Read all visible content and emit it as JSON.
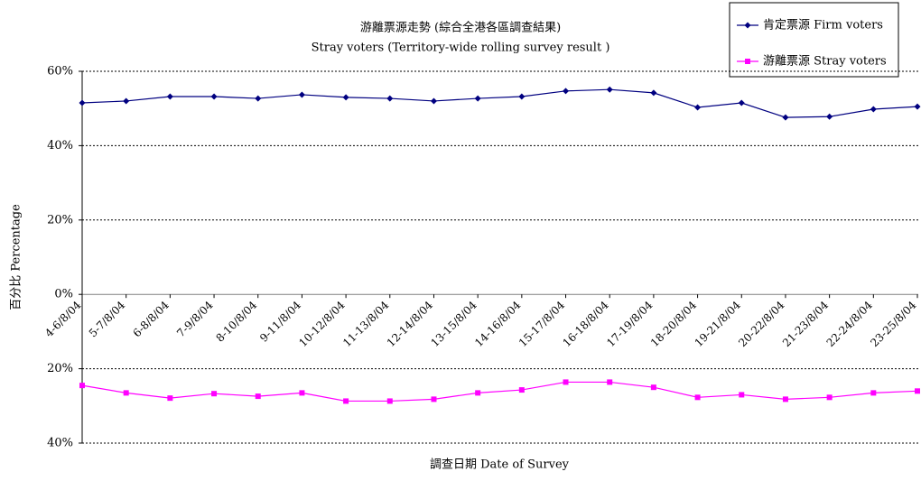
{
  "chart_data": {
    "type": "line",
    "title": "游離票源走勢 (綜合全港各區調查結果)",
    "subtitle": "Stray voters (Territory-wide rolling survey result )",
    "xlabel": "調查日期 Date of Survey",
    "ylabel": "百分比 Percentage",
    "categories": [
      "4-6/8/04",
      "5-7/8/04",
      "6-8/8/04",
      "7-9/8/04",
      "8-10/8/04",
      "9-11/8/04",
      "10-12/8/04",
      "11-13/8/04",
      "12-14/8/04",
      "13-15/8/04",
      "14-16/8/04",
      "15-17/8/04",
      "16-18/8/04",
      "17-19/8/04",
      "18-20/8/04",
      "19-21/8/04",
      "20-22/8/04",
      "21-23/8/04",
      "22-24/8/04",
      "23-25/8/04"
    ],
    "series": [
      {
        "name": "肯定票源 Firm voters",
        "color": "#000080",
        "marker": "diamond",
        "values": [
          51.5,
          52.0,
          53.2,
          53.2,
          52.7,
          53.7,
          53.0,
          52.7,
          52.0,
          52.7,
          53.2,
          54.7,
          55.1,
          54.2,
          50.3,
          51.5,
          47.6,
          47.8,
          49.8,
          50.5
        ]
      },
      {
        "name": "游離票源 Stray voters",
        "color": "#ff00ff",
        "marker": "square",
        "values": [
          -24.5,
          -26.5,
          -27.9,
          -26.7,
          -27.4,
          -26.5,
          -28.7,
          -28.7,
          -28.2,
          -26.5,
          -25.7,
          -23.6,
          -23.6,
          -25.0,
          -27.7,
          -27.0,
          -28.2,
          -27.7,
          -26.5,
          -26.0
        ]
      }
    ],
    "ylim": [
      -40,
      60
    ],
    "yticks": [
      {
        "value": 60,
        "label": "60%"
      },
      {
        "value": 40,
        "label": "40%"
      },
      {
        "value": 20,
        "label": "20%"
      },
      {
        "value": 0,
        "label": "0%"
      },
      {
        "value": -20,
        "label": "20%"
      },
      {
        "value": -40,
        "label": "40%"
      }
    ],
    "grid": true,
    "legend": "top-right"
  }
}
